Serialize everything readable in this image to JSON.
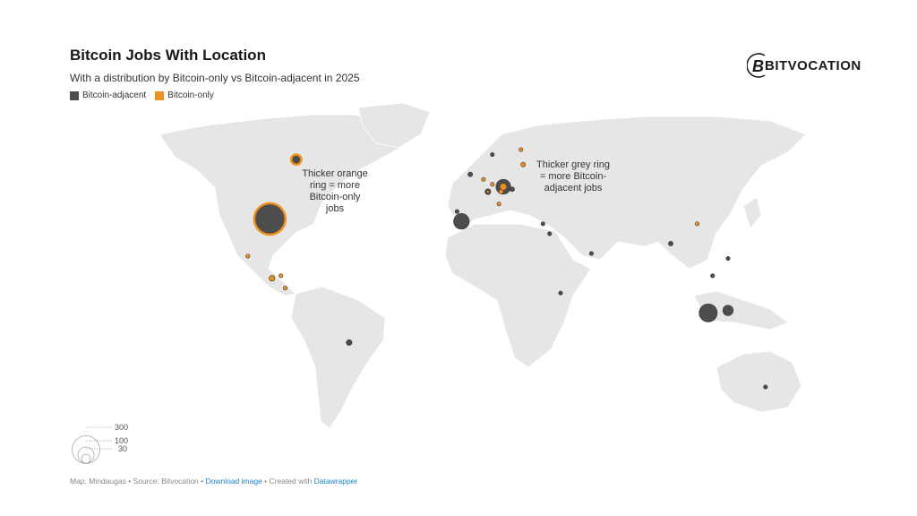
{
  "header": {
    "title": "Bitcoin Jobs With Location",
    "subtitle": "With a distribution by Bitcoin-only vs Bitcoin-adjacent in 2025"
  },
  "legend": {
    "items": [
      {
        "label": "Bitcoin-adjacent",
        "color": "#4d4d4d"
      },
      {
        "label": "Bitcoin-only",
        "color": "#f0901e"
      }
    ]
  },
  "logo": {
    "text": "BITVOCATION",
    "icon": "bitcoin-b-icon"
  },
  "annotations": {
    "orange": [
      "Thicker orange",
      "ring = more",
      "Bitcoin-only",
      "jobs"
    ],
    "grey": [
      "Thicker grey ring",
      "= more Bitcoin-",
      "adjacent jobs"
    ]
  },
  "size_legend": {
    "values": [
      "300",
      "100",
      "30"
    ]
  },
  "footer": {
    "map": "Map: Mindaugas",
    "sep": " • ",
    "source": "Source: Bitvocation",
    "download": "Download image",
    "created": "Created with",
    "datawrapper": "Datawrapper"
  },
  "colors": {
    "land": "#e6e6e6",
    "border": "#ffffff",
    "adjacent": "#4d4d4d",
    "only": "#f0901e"
  },
  "chart_data": {
    "type": "symbol-map",
    "symbols": [
      {
        "place": "Canada",
        "lon": -83,
        "lat": 63,
        "value": 20,
        "fill": "adjacent",
        "ring": "only"
      },
      {
        "place": "United States",
        "lon": -95,
        "lat": 39,
        "value": 300,
        "fill": "adjacent",
        "ring": "only"
      },
      {
        "place": "Mexico",
        "lon": -105,
        "lat": 24,
        "value": 6,
        "fill": "only"
      },
      {
        "place": "Guatemala",
        "lon": -94,
        "lat": 15,
        "value": 12,
        "fill": "only"
      },
      {
        "place": "Honduras",
        "lon": -90,
        "lat": 16,
        "value": 3,
        "fill": "only"
      },
      {
        "place": "Costa Rica",
        "lon": -88,
        "lat": 11,
        "value": 3,
        "fill": "only"
      },
      {
        "place": "Brazil",
        "lon": -59,
        "lat": -11,
        "value": 12,
        "fill": "adjacent"
      },
      {
        "place": "Portugal",
        "lon": -8,
        "lat": 38,
        "value": 90,
        "fill": "adjacent"
      },
      {
        "place": "Spain",
        "lon": -10,
        "lat": 42,
        "value": 3,
        "fill": "adjacent"
      },
      {
        "place": "United Kingdom",
        "lon": -4,
        "lat": 57,
        "value": 8,
        "fill": "adjacent"
      },
      {
        "place": "Norway",
        "lon": 6,
        "lat": 65,
        "value": 4,
        "fill": "adjacent"
      },
      {
        "place": "Finland",
        "lon": 19,
        "lat": 67,
        "value": 2,
        "fill": "only"
      },
      {
        "place": "Estonia",
        "lon": 20,
        "lat": 61,
        "value": 8,
        "fill": "only"
      },
      {
        "place": "Netherlands",
        "lon": 2,
        "lat": 55,
        "value": 5,
        "fill": "only"
      },
      {
        "place": "Germany North",
        "lon": 6,
        "lat": 53,
        "value": 3,
        "fill": "only"
      },
      {
        "place": "Germany",
        "lon": 11,
        "lat": 52,
        "value": 80,
        "fill": "adjacent",
        "ring_inner": "only"
      },
      {
        "place": "Czechia",
        "lon": 15,
        "lat": 51,
        "value": 8,
        "fill": "adjacent"
      },
      {
        "place": "France",
        "lon": 4,
        "lat": 50,
        "value": 12,
        "fill": "adjacent",
        "ring_inner": "only"
      },
      {
        "place": "Switzerland",
        "lon": 10,
        "lat": 50,
        "value": 8,
        "fill": "only"
      },
      {
        "place": "Italy",
        "lon": 9,
        "lat": 45,
        "value": 5,
        "fill": "only"
      },
      {
        "place": "Cyprus",
        "lon": 29,
        "lat": 37,
        "value": 1,
        "fill": "adjacent"
      },
      {
        "place": "Israel",
        "lon": 32,
        "lat": 33,
        "value": 3,
        "fill": "adjacent"
      },
      {
        "place": "UAE",
        "lon": 51,
        "lat": 25,
        "value": 1,
        "fill": "adjacent"
      },
      {
        "place": "India",
        "lon": 87,
        "lat": 29,
        "value": 8,
        "fill": "adjacent"
      },
      {
        "place": "China",
        "lon": 99,
        "lat": 37,
        "value": 1,
        "fill": "only"
      },
      {
        "place": "Vietnam",
        "lon": 106,
        "lat": 16,
        "value": 5,
        "fill": "adjacent"
      },
      {
        "place": "Philippines",
        "lon": 113,
        "lat": 23,
        "value": 2,
        "fill": "adjacent"
      },
      {
        "place": "Ethiopia",
        "lon": 37,
        "lat": 9,
        "value": 4,
        "fill": "adjacent"
      },
      {
        "place": "Singapore",
        "lon": 104,
        "lat": 1,
        "value": 120,
        "fill": "adjacent"
      },
      {
        "place": "Indonesia",
        "lon": 113,
        "lat": 2,
        "value": 40,
        "fill": "adjacent"
      },
      {
        "place": "Australia",
        "lon": 130,
        "lat": -29,
        "value": 1,
        "fill": "adjacent"
      }
    ]
  }
}
